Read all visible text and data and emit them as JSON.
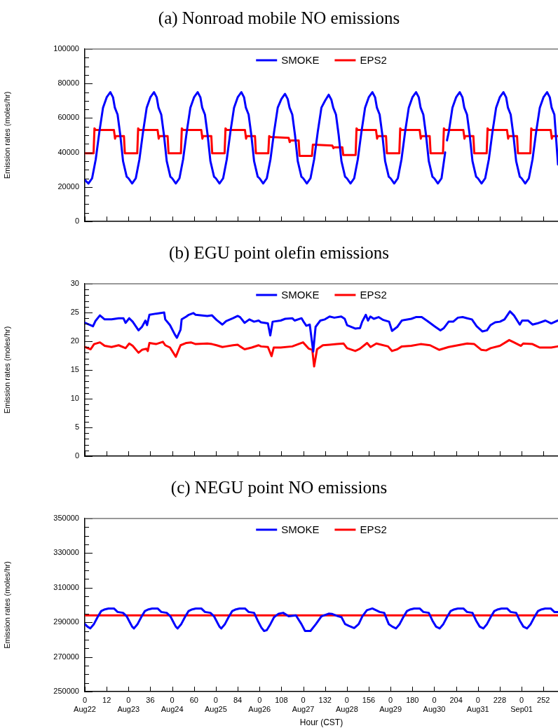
{
  "chart_data": [
    {
      "type": "line",
      "title": "(a) Nonroad mobile NO emissions",
      "ylabel": "Emission rates (moles/hr)",
      "xlim": [
        0,
        260
      ],
      "ylim": [
        0,
        100000
      ],
      "xticks": [
        0,
        12,
        24,
        36,
        48,
        60,
        72,
        84,
        96,
        108,
        120,
        132,
        144,
        156,
        168,
        180,
        192,
        204,
        216,
        228,
        240,
        252
      ],
      "yticks": [
        0,
        {
          "value": 5000,
          "label": null
        },
        {
          "value": 10000,
          "label": null
        },
        {
          "value": 15000,
          "label": null
        },
        20000,
        {
          "value": 25000,
          "label": null
        },
        {
          "value": 30000,
          "label": null
        },
        {
          "value": 35000,
          "label": null
        },
        40000,
        {
          "value": 45000,
          "label": null
        },
        {
          "value": 50000,
          "label": null
        },
        {
          "value": 55000,
          "label": null
        },
        60000,
        {
          "value": 65000,
          "label": null
        },
        {
          "value": 70000,
          "label": null
        },
        {
          "value": 75000,
          "label": null
        },
        80000,
        {
          "value": 85000,
          "label": null
        },
        {
          "value": 90000,
          "label": null
        },
        {
          "value": 95000,
          "label": null
        },
        100000
      ],
      "tick_labels": "y",
      "grid": false,
      "legend": "top",
      "marker": "none",
      "line_style": "solid",
      "series": [
        {
          "name": "SMOKE",
          "color": "#0000ff",
          "x": [
            0,
            2,
            4,
            6,
            8,
            10,
            12,
            14,
            15.5,
            16.5,
            18,
            19.5,
            21,
            23,
            24,
            26,
            28,
            30,
            32,
            34,
            36,
            38,
            39.5,
            40.5,
            42,
            43.5,
            45,
            47,
            48,
            50,
            52,
            54,
            56,
            58,
            60,
            62,
            63.5,
            64.5,
            66,
            67.5,
            69,
            71,
            72,
            74,
            76,
            78,
            80,
            82,
            84,
            86,
            87.5,
            88.5,
            90,
            91.5,
            93,
            95,
            96,
            98,
            100,
            102,
            104,
            106,
            108,
            110,
            111.5,
            112.5,
            114,
            115.5,
            117,
            119,
            120,
            122,
            124,
            126,
            128,
            130,
            132,
            134,
            135.5,
            136.5,
            138,
            139.5,
            141,
            143,
            144,
            146,
            148,
            150,
            152,
            154,
            156,
            158,
            159.5,
            160.5,
            162,
            163.5,
            165,
            167,
            168,
            170,
            172,
            174,
            176,
            178,
            180,
            182,
            183.5,
            184.5,
            186,
            187.5,
            189,
            191,
            192,
            194,
            196,
            198,
            198.5,
            199,
            200,
            202,
            204,
            206,
            207.5,
            208.5,
            210,
            211.5,
            213,
            215,
            216,
            218,
            220,
            222,
            224,
            226,
            228,
            230,
            231.5,
            232.5,
            234,
            235.5,
            237,
            239,
            240,
            242,
            244,
            246,
            248,
            250,
            252,
            254,
            255.5,
            256.5,
            258,
            260
          ],
          "values": [
            24000,
            22000,
            25000,
            36000,
            52000,
            66000,
            72000,
            75000,
            72000,
            66000,
            62000,
            50000,
            35000,
            26000,
            25000,
            22000,
            25000,
            36000,
            52000,
            66000,
            72000,
            75000,
            72000,
            66000,
            62000,
            50000,
            35000,
            26000,
            25000,
            22000,
            25000,
            36000,
            52000,
            66000,
            72000,
            75000,
            72000,
            66000,
            62000,
            50000,
            35000,
            26000,
            25000,
            22000,
            25000,
            36000,
            52000,
            66000,
            72000,
            75000,
            72000,
            66000,
            62000,
            50000,
            35000,
            26000,
            25000,
            22000,
            25000,
            36000,
            52000,
            66000,
            71000,
            74000,
            71000,
            66000,
            62000,
            50000,
            35000,
            26000,
            25000,
            22000,
            25000,
            36000,
            52000,
            66000,
            70000,
            73500,
            70500,
            66000,
            62000,
            50000,
            35000,
            26000,
            25000,
            22000,
            25000,
            36000,
            52000,
            66000,
            72000,
            75000,
            72000,
            66000,
            62000,
            50000,
            35000,
            26000,
            25000,
            22000,
            25000,
            36000,
            52000,
            66000,
            72000,
            75000,
            72000,
            66000,
            62000,
            50000,
            35000,
            26000,
            25000,
            22000,
            25000,
            40000,
            null,
            47000,
            52000,
            66000,
            72000,
            75000,
            72000,
            66000,
            62000,
            50000,
            35000,
            26000,
            25000,
            22000,
            25000,
            36000,
            52000,
            66000,
            72000,
            75000,
            72000,
            66000,
            62000,
            50000,
            35000,
            26000,
            25000,
            22000,
            25000,
            36000,
            52000,
            66000,
            72000,
            75000,
            72000,
            66000,
            62000,
            33000
          ]
        },
        {
          "name": "EPS2",
          "color": "#ff0000",
          "x": [
            0,
            4.8,
            5.3,
            6,
            16,
            16.6,
            17,
            21.5,
            22,
            28.8,
            29.3,
            30,
            40,
            40.6,
            41,
            45.5,
            46,
            52.8,
            53.3,
            54,
            64,
            64.6,
            65,
            69.5,
            70,
            76.8,
            77.3,
            78,
            88,
            88.6,
            89,
            93.5,
            94,
            100.8,
            101.3,
            102,
            112,
            112.6,
            113,
            117.5,
            118,
            124.8,
            125.3,
            126,
            136,
            136.6,
            137,
            141.5,
            142,
            148.8,
            149.3,
            150,
            160,
            160.6,
            161,
            165.5,
            166,
            172.8,
            173.3,
            174,
            184,
            184.6,
            185,
            189.5,
            190,
            196.8,
            197.3,
            198,
            208,
            208.6,
            209,
            213.5,
            214,
            220.8,
            221.3,
            222,
            232,
            232.6,
            233,
            237.5,
            238,
            244.8,
            245.3,
            246,
            256,
            256.6,
            257,
            260
          ],
          "values": [
            39500,
            39500,
            54000,
            53000,
            53000,
            48000,
            49500,
            49500,
            39500,
            39500,
            54000,
            53000,
            53000,
            48000,
            49500,
            49500,
            39500,
            39500,
            54000,
            53000,
            53000,
            48000,
            49500,
            49500,
            39500,
            39500,
            54000,
            53000,
            53000,
            48000,
            49500,
            49500,
            39500,
            39500,
            49500,
            49000,
            48500,
            46000,
            47000,
            47000,
            38000,
            38000,
            44500,
            44500,
            44000,
            42500,
            43000,
            43000,
            38500,
            38500,
            54000,
            53000,
            53000,
            48000,
            49500,
            49500,
            39500,
            39500,
            54000,
            53000,
            53000,
            48000,
            49500,
            49500,
            39500,
            39500,
            54000,
            53000,
            53000,
            48000,
            49500,
            49500,
            39500,
            39500,
            54000,
            53000,
            53000,
            48000,
            49500,
            49500,
            39500,
            39500,
            54000,
            53000,
            53000,
            48000,
            49500,
            49500
          ]
        }
      ]
    },
    {
      "type": "line",
      "title": "(b) EGU point olefin emissions",
      "ylabel": "Emission rates (moles/hr)",
      "xlim": [
        0,
        260
      ],
      "ylim": [
        0,
        30
      ],
      "xticks": [
        0,
        12,
        24,
        36,
        48,
        60,
        72,
        84,
        96,
        108,
        120,
        132,
        144,
        156,
        168,
        180,
        192,
        204,
        216,
        228,
        240,
        252
      ],
      "yticks": [
        0,
        {
          "value": 1,
          "label": null
        },
        {
          "value": 2,
          "label": null
        },
        {
          "value": 3,
          "label": null
        },
        {
          "value": 4,
          "label": null
        },
        5,
        {
          "value": 6,
          "label": null
        },
        {
          "value": 7,
          "label": null
        },
        {
          "value": 8,
          "label": null
        },
        {
          "value": 9,
          "label": null
        },
        10,
        {
          "value": 11,
          "label": null
        },
        {
          "value": 12,
          "label": null
        },
        {
          "value": 13,
          "label": null
        },
        {
          "value": 14,
          "label": null
        },
        15,
        {
          "value": 16,
          "label": null
        },
        {
          "value": 17,
          "label": null
        },
        {
          "value": 18,
          "label": null
        },
        {
          "value": 19,
          "label": null
        },
        20,
        {
          "value": 21,
          "label": null
        },
        {
          "value": 22,
          "label": null
        },
        {
          "value": 23,
          "label": null
        },
        {
          "value": 24,
          "label": null
        },
        25,
        {
          "value": 26,
          "label": null
        },
        {
          "value": 27,
          "label": null
        },
        {
          "value": 28,
          "label": null
        },
        {
          "value": 29,
          "label": null
        },
        30
      ],
      "tick_labels": "y",
      "grid": false,
      "legend": "top",
      "marker": "none",
      "line_style": "solid",
      "series": [
        {
          "name": "SMOKE",
          "color": "#0000ff",
          "x": [
            0,
            3.2,
            4.5,
            5.8,
            8.3,
            10.9,
            14.7,
            18.6,
            21.2,
            22.4,
            24.4,
            26.3,
            29.5,
            31.4,
            33.3,
            34.2,
            35.5,
            39.1,
            43.6,
            44.2,
            46.8,
            49.4,
            50.6,
            52.6,
            53.2,
            55.8,
            57.1,
            59.6,
            60.9,
            67.3,
            69.9,
            72.4,
            75.6,
            77.6,
            81.4,
            84,
            85.3,
            87.8,
            90.4,
            93,
            95.5,
            96.8,
            100.6,
            101.9,
            103.2,
            107.6,
            110.1,
            114,
            115.3,
            119.1,
            120.4,
            121.7,
            123.6,
            125.5,
            126.8,
            129.4,
            131.9,
            134.5,
            137.1,
            140.9,
            142.8,
            144.1,
            148.6,
            151.2,
            152.4,
            154.4,
            155.6,
            156.9,
            158.8,
            161.4,
            164,
            167.2,
            168.8,
            171.7,
            174.2,
            175.5,
            179.4,
            181.9,
            185.1,
            188.3,
            192.2,
            195.4,
            197.3,
            199.9,
            202.4,
            205,
            207.6,
            210.1,
            212.7,
            215.3,
            218.5,
            221,
            222.9,
            225.5,
            228.1,
            230.6,
            233.6,
            235.8,
            239,
            240.3,
            243.5,
            246,
            248.6,
            253.1,
            256.3,
            259.9
          ],
          "values": [
            23.2,
            22.8,
            22.6,
            23.5,
            24.5,
            23.8,
            23.8,
            24.0,
            24.0,
            23.2,
            24.0,
            23.4,
            21.9,
            22.5,
            23.6,
            22.8,
            24.6,
            24.8,
            25.0,
            23.8,
            22.8,
            21.2,
            20.6,
            22.0,
            23.8,
            24.3,
            24.6,
            24.9,
            24.6,
            24.4,
            24.5,
            23.7,
            22.9,
            23.5,
            24.0,
            24.4,
            24.2,
            23.2,
            23.8,
            23.4,
            23.6,
            23.3,
            23.1,
            21.0,
            23.4,
            23.6,
            23.9,
            24.0,
            23.6,
            24.0,
            23.3,
            22.7,
            22.9,
            18.2,
            22.5,
            23.6,
            23.8,
            24.3,
            24.1,
            24.3,
            23.9,
            22.8,
            22.2,
            22.3,
            23.4,
            24.6,
            23.6,
            24.3,
            23.9,
            24.2,
            23.7,
            23.4,
            21.8,
            22.5,
            23.6,
            23.7,
            23.9,
            24.2,
            24.2,
            23.5,
            22.6,
            21.9,
            22.3,
            23.4,
            23.4,
            24.1,
            24.2,
            24.0,
            23.8,
            22.6,
            21.7,
            21.9,
            22.8,
            23.3,
            23.4,
            23.8,
            25.2,
            24.5,
            22.9,
            23.6,
            23.6,
            22.9,
            23.1,
            23.6,
            23.1,
            23.6
          ]
        },
        {
          "name": "EPS2",
          "color": "#ff0000",
          "x": [
            0,
            3.2,
            5.1,
            8.3,
            10.9,
            14.7,
            18.6,
            22.4,
            24.4,
            26.3,
            29.5,
            31.4,
            33.9,
            34.6,
            35.5,
            39.1,
            42.9,
            44.2,
            46.8,
            50,
            52.6,
            55.8,
            58.3,
            60.9,
            67.3,
            69.9,
            72.4,
            75.6,
            77.6,
            81.4,
            84,
            85.3,
            87.8,
            91.7,
            95.5,
            96.8,
            100.6,
            102.6,
            103.8,
            107.6,
            114,
            119.9,
            123.1,
            125,
            126,
            127.6,
            130.8,
            134.5,
            138.4,
            142.2,
            144.1,
            148.6,
            151.2,
            155.1,
            157,
            160.2,
            166.6,
            168.8,
            171.7,
            174.2,
            179.4,
            184.5,
            189.7,
            194.8,
            199.9,
            205,
            210.1,
            214,
            217.9,
            220.5,
            223,
            228.1,
            233.2,
            235.8,
            239.6,
            240.9,
            246,
            249.9,
            256.3,
            259.9
          ],
          "values": [
            19.0,
            18.6,
            19.5,
            19.8,
            19.2,
            19.0,
            19.3,
            18.8,
            19.6,
            19.2,
            18.0,
            18.5,
            18.7,
            18.3,
            19.7,
            19.5,
            19.9,
            19.3,
            18.9,
            17.3,
            19.3,
            19.7,
            19.8,
            19.5,
            19.6,
            19.5,
            19.3,
            19.0,
            19.1,
            19.3,
            19.4,
            19.1,
            18.6,
            18.9,
            19.3,
            19.1,
            19.0,
            17.4,
            18.9,
            18.9,
            19.1,
            19.8,
            18.7,
            18.5,
            15.6,
            18.6,
            19.3,
            19.4,
            19.5,
            19.6,
            18.8,
            18.3,
            18.7,
            19.7,
            19.0,
            19.6,
            19.1,
            18.3,
            18.6,
            19.1,
            19.2,
            19.5,
            19.3,
            18.5,
            19.0,
            19.3,
            19.6,
            19.5,
            18.5,
            18.4,
            18.8,
            19.2,
            20.2,
            19.8,
            19.2,
            19.6,
            19.5,
            18.9,
            18.9,
            19.1
          ]
        }
      ]
    },
    {
      "type": "line",
      "title": "(c) NEGU point NO emissions",
      "ylabel": "Emission rates (moles/hr)",
      "xlabel": "Hour (CST)",
      "xlim": [
        0,
        260
      ],
      "ylim": [
        250000,
        350000
      ],
      "xticks": [
        {
          "value": 0,
          "label": "0\nAug22"
        },
        12,
        {
          "value": 24,
          "label": "0\nAug23"
        },
        36,
        {
          "value": 48,
          "label": "0\nAug24"
        },
        60,
        {
          "value": 72,
          "label": "0\nAug25"
        },
        84,
        {
          "value": 96,
          "label": "0\nAug26"
        },
        108,
        {
          "value": 120,
          "label": "0\nAug27"
        },
        132,
        {
          "value": 144,
          "label": "0\nAug28"
        },
        156,
        {
          "value": 168,
          "label": "0\nAug29"
        },
        180,
        {
          "value": 192,
          "label": "0\nAug30"
        },
        204,
        {
          "value": 216,
          "label": "0\nAug31"
        },
        228,
        {
          "value": 240,
          "label": "0\nSep01"
        },
        252
      ],
      "yticks": [
        250000,
        {
          "value": 255000,
          "label": null
        },
        {
          "value": 260000,
          "label": null
        },
        {
          "value": 265000,
          "label": null
        },
        270000,
        {
          "value": 275000,
          "label": null
        },
        {
          "value": 280000,
          "label": null
        },
        {
          "value": 285000,
          "label": null
        },
        290000,
        {
          "value": 295000,
          "label": null
        },
        {
          "value": 300000,
          "label": null
        },
        {
          "value": 305000,
          "label": null
        },
        310000,
        {
          "value": 315000,
          "label": null
        },
        {
          "value": 320000,
          "label": null
        },
        {
          "value": 325000,
          "label": null
        },
        330000,
        {
          "value": 335000,
          "label": null
        },
        {
          "value": 340000,
          "label": null
        },
        {
          "value": 345000,
          "label": null
        },
        350000
      ],
      "grid": false,
      "legend": "top",
      "marker": "none",
      "line_style": "solid",
      "series": [
        {
          "name": "SMOKE",
          "color": "#0000ff",
          "x": [
            0,
            1.5,
            3,
            5,
            7,
            9,
            11,
            13,
            16,
            18,
            21,
            23,
            25,
            26,
            27,
            29,
            31,
            33,
            35,
            37,
            40,
            42,
            45,
            47,
            49,
            50,
            51,
            53,
            55,
            57,
            59,
            61,
            64,
            66,
            69,
            71,
            73,
            74,
            75,
            77,
            79,
            81,
            83,
            85,
            88,
            90,
            93,
            95,
            97,
            98.5,
            100,
            102,
            104,
            106.5,
            109,
            112,
            116,
            119,
            121,
            124,
            127,
            130,
            134,
            136,
            139,
            141,
            143,
            145,
            148,
            150.5,
            152.5,
            155,
            158,
            162,
            164.5,
            167,
            169,
            171,
            173,
            175,
            177,
            179,
            181,
            184,
            186,
            189,
            191,
            193,
            195,
            197,
            199,
            201,
            203,
            205,
            208,
            210,
            213,
            215,
            217,
            219,
            221,
            223,
            225,
            227,
            229,
            232,
            234,
            237,
            239,
            241,
            243,
            245,
            247,
            249,
            251,
            253,
            256,
            258,
            260
          ],
          "values": [
            289000,
            287500,
            286500,
            289000,
            293000,
            296500,
            297500,
            298000,
            298000,
            296000,
            295500,
            293500,
            289500,
            287500,
            286500,
            289000,
            293000,
            296500,
            297500,
            298000,
            298000,
            296000,
            295500,
            293500,
            289500,
            287500,
            286500,
            289000,
            293000,
            296500,
            297500,
            298000,
            298000,
            296000,
            295500,
            293500,
            289500,
            287500,
            286500,
            289000,
            293000,
            296500,
            297500,
            298000,
            298000,
            296000,
            295500,
            291000,
            287000,
            285000,
            285500,
            289000,
            293000,
            295000,
            295500,
            293500,
            294000,
            289000,
            285000,
            285000,
            289000,
            293500,
            295000,
            294800,
            293600,
            293000,
            289000,
            288000,
            286700,
            289000,
            293500,
            297000,
            298000,
            296000,
            295500,
            289000,
            287500,
            286500,
            289000,
            293000,
            296500,
            297500,
            298000,
            298000,
            296000,
            295500,
            291000,
            287500,
            286500,
            289000,
            293000,
            296500,
            297500,
            298000,
            298000,
            296000,
            295500,
            291000,
            287500,
            286500,
            289000,
            293000,
            296500,
            297500,
            298000,
            298000,
            296000,
            295500,
            291000,
            287500,
            286500,
            289000,
            293000,
            296500,
            297500,
            298000,
            298000,
            296000,
            296000
          ]
        },
        {
          "name": "EPS2",
          "color": "#ff0000",
          "x": [
            0,
            260
          ],
          "values": [
            294000,
            294000
          ]
        }
      ]
    }
  ]
}
